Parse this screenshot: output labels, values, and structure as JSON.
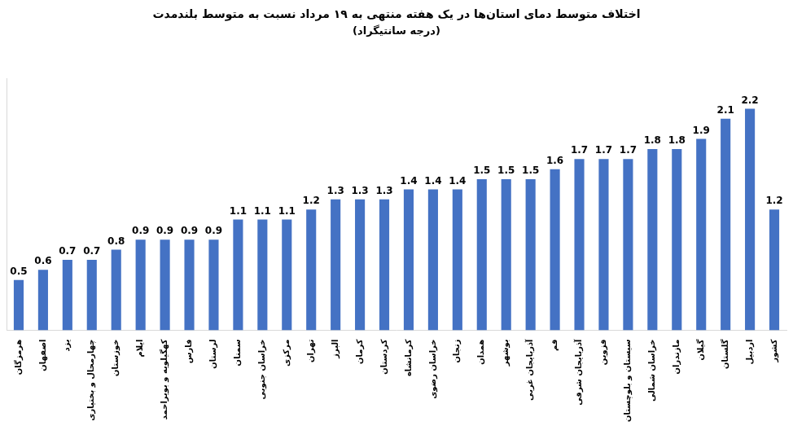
{
  "chart_data": {
    "type": "bar",
    "title": "اختلاف متوسط دمای استان‌ها در یک هفته منتهی به ۱۹ مرداد نسبت به متوسط بلندمدت",
    "subtitle": "(درجه سانتیگراد)",
    "categories": [
      "هرمزگان",
      "اصفهان",
      "یزد",
      "چهارمحال و بختیاری",
      "خوزستان",
      "ایلام",
      "کهگیلویه و بویراحمد",
      "فارس",
      "لرستان",
      "سمنان",
      "خراسان جنوبی",
      "مرکزی",
      "تهران",
      "البرز",
      "کرمان",
      "کردستان",
      "کرمانشاه",
      "خراسان رضوی",
      "زنجان",
      "همدان",
      "بوشهر",
      "آذربایجان غربی",
      "قم",
      "آذربایجان شرقی",
      "قزوین",
      "سیستان و بلوچستان",
      "خراسان شمالی",
      "مازندران",
      "گیلان",
      "گلستان",
      "اردبیل",
      "کشور"
    ],
    "values": [
      0.5,
      0.6,
      0.7,
      0.7,
      0.8,
      0.9,
      0.9,
      0.9,
      0.9,
      1.1,
      1.1,
      1.1,
      1.2,
      1.3,
      1.3,
      1.3,
      1.4,
      1.4,
      1.4,
      1.5,
      1.5,
      1.5,
      1.6,
      1.7,
      1.7,
      1.7,
      1.8,
      1.8,
      1.9,
      2.1,
      2.2,
      1.2
    ],
    "color": "#4472c4",
    "ylim": [
      0,
      2.5
    ],
    "grid": false,
    "data_labels": true,
    "tick_labels": "x"
  }
}
